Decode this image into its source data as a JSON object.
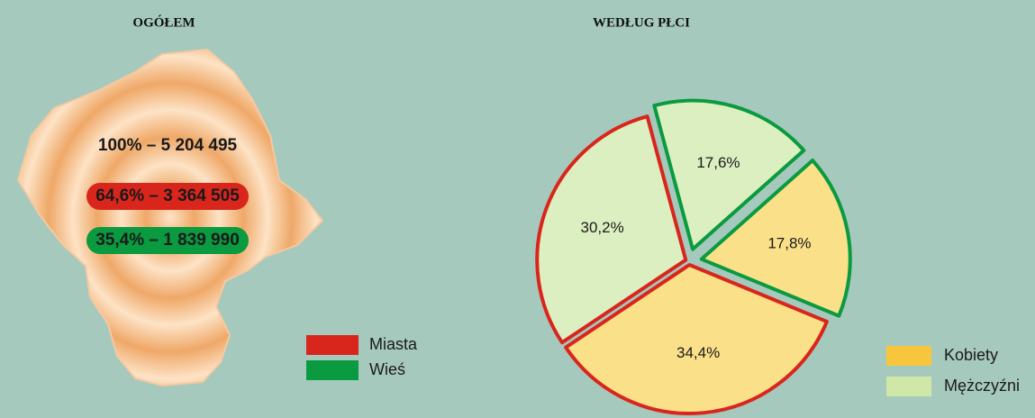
{
  "chart_data": [
    {
      "type": "map",
      "title": "OGÓŁEM",
      "labels": [
        "100% – 5 204 495",
        "64,6% – 3 364 505",
        "35,4% – 1 839 990"
      ],
      "legend": [
        {
          "name": "Miasta",
          "color": "#d9261c"
        },
        {
          "name": "Wieś",
          "color": "#0a9a40"
        }
      ]
    },
    {
      "type": "pie",
      "title": "WEDŁUG PŁCI",
      "values": [
        17.6,
        17.8,
        34.4,
        30.2
      ],
      "value_labels": [
        "17,6%",
        "17,8%",
        "34,4%",
        "30,2%"
      ],
      "colors": [
        "#dcefc0",
        "#fbe08a",
        "#fbe08a",
        "#dcefc0"
      ],
      "border_colors": [
        "#0a9a40",
        "#0a9a40",
        "#d9261c",
        "#d9261c"
      ],
      "legend": [
        {
          "name": "Kobiety",
          "color": "#f7c63c"
        },
        {
          "name": "Mężczyźni",
          "color": "#cfe8a8"
        }
      ]
    }
  ]
}
